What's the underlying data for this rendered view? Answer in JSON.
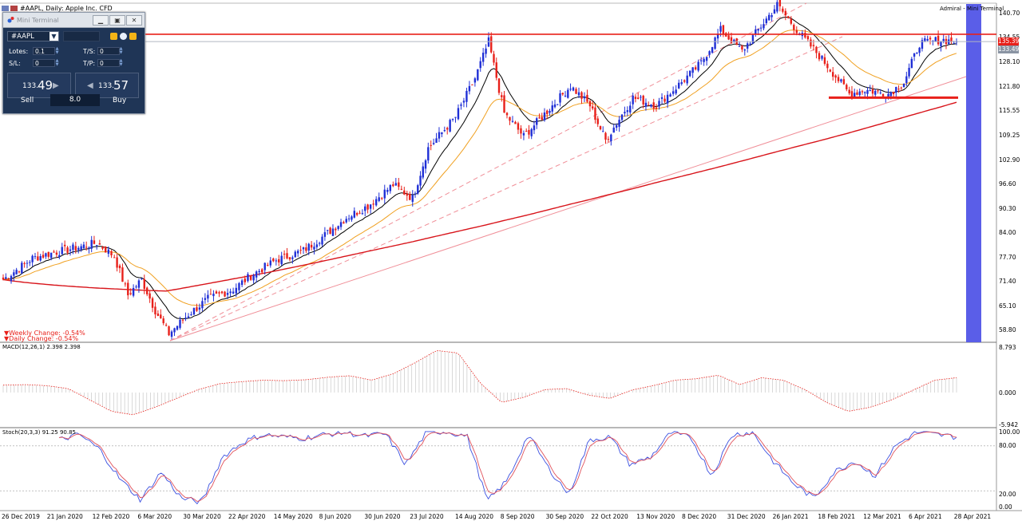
{
  "window": {
    "title": "#AAPL, Daily: Apple Inc. CFD",
    "top_right_label": "Admiral - Mini Terminal"
  },
  "price_axis": {
    "labels": [
      "140.70",
      "134.55",
      "128.10",
      "121.80",
      "115.55",
      "109.25",
      "102.90",
      "96.60",
      "90.30",
      "84.00",
      "77.70",
      "71.40",
      "65.10",
      "58.80"
    ],
    "tags": [
      {
        "value": "135.39",
        "color": "#e8201a"
      },
      {
        "value": "133.49",
        "color": "#8a94a3"
      }
    ]
  },
  "macd_axis": {
    "labels": [
      "8.793",
      "0.000",
      "-5.942"
    ]
  },
  "stoch_axis": {
    "labels": [
      "100.00",
      "80.00",
      "20.00",
      "0.00"
    ]
  },
  "time_axis": {
    "labels": [
      "26 Dec 2019",
      "21 Jan 2020",
      "12 Feb 2020",
      "6 Mar 2020",
      "30 Mar 2020",
      "22 Apr 2020",
      "14 May 2020",
      "8 Jun 2020",
      "30 Jun 2020",
      "23 Jul 2020",
      "14 Aug 2020",
      "8 Sep 2020",
      "30 Sep 2020",
      "22 Oct 2020",
      "13 Nov 2020",
      "8 Dec 2020",
      "31 Dec 2020",
      "26 Jan 2021",
      "18 Feb 2021",
      "12 Mar 2021",
      "6 Apr 2021",
      "28 Apr 2021"
    ]
  },
  "changes": {
    "weekly": "Weekly Change: -0.54%",
    "daily": "Daily Change: -0.54%",
    "color": "#e8201a"
  },
  "indicators": {
    "macd_label": "MACD(12,26,1) 2.398 2.398",
    "stoch_label": "Stoch(20,3,3) 91.25 90.85"
  },
  "mini_terminal": {
    "title": "Mini Terminal",
    "symbol": "#AAPL",
    "lots_label": "Lotes:",
    "lots_value": "0.1",
    "sl_label": "S/L:",
    "sl_value": "0",
    "ts_label": "T/S:",
    "ts_value": "0",
    "tp_label": "T/P:",
    "tp_value": "0",
    "sell_price_small": "133.",
    "sell_price_big": "49",
    "buy_price_small": "133.",
    "buy_price_big": "57",
    "sell_label": "Sell",
    "buy_label": "Buy",
    "spread": "8.0"
  },
  "colors": {
    "bull_candle": "#1f2fd6",
    "bear_candle": "#e8201a",
    "ema_fast": "#000000",
    "ema_slow": "#f0a020",
    "ma_long": "#d8141a",
    "resistance_line": "#e8201a",
    "support_line": "#e8201a",
    "highlight_band": "#5a5ee8"
  },
  "chart_data": {
    "type": "candlestick",
    "symbol": "#AAPL",
    "timeframe": "Daily",
    "ylim": [
      56,
      143
    ],
    "resistance_level": 135.39,
    "current_price": 133.49,
    "support_level": 119.0,
    "closes_weekly": [
      {
        "x": "2019-12-26",
        "y": 72.0
      },
      {
        "x": "2020-01-10",
        "y": 77.5
      },
      {
        "x": "2020-01-21",
        "y": 79.0
      },
      {
        "x": "2020-02-04",
        "y": 80.5
      },
      {
        "x": "2020-02-12",
        "y": 81.5
      },
      {
        "x": "2020-02-21",
        "y": 78.0
      },
      {
        "x": "2020-02-28",
        "y": 68.0
      },
      {
        "x": "2020-03-06",
        "y": 72.0
      },
      {
        "x": "2020-03-13",
        "y": 64.0
      },
      {
        "x": "2020-03-20",
        "y": 58.0
      },
      {
        "x": "2020-03-30",
        "y": 63.0
      },
      {
        "x": "2020-04-09",
        "y": 67.0
      },
      {
        "x": "2020-04-22",
        "y": 69.5
      },
      {
        "x": "2020-05-01",
        "y": 73.0
      },
      {
        "x": "2020-05-14",
        "y": 77.0
      },
      {
        "x": "2020-05-28",
        "y": 79.5
      },
      {
        "x": "2020-06-08",
        "y": 83.5
      },
      {
        "x": "2020-06-19",
        "y": 88.0
      },
      {
        "x": "2020-06-30",
        "y": 91.0
      },
      {
        "x": "2020-07-13",
        "y": 96.5
      },
      {
        "x": "2020-07-23",
        "y": 93.0
      },
      {
        "x": "2020-07-31",
        "y": 106.0
      },
      {
        "x": "2020-08-14",
        "y": 114.0
      },
      {
        "x": "2020-08-24",
        "y": 124.0
      },
      {
        "x": "2020-08-31",
        "y": 133.5
      },
      {
        "x": "2020-09-08",
        "y": 115.0
      },
      {
        "x": "2020-09-18",
        "y": 109.0
      },
      {
        "x": "2020-09-30",
        "y": 115.5
      },
      {
        "x": "2020-10-12",
        "y": 122.0
      },
      {
        "x": "2020-10-22",
        "y": 117.0
      },
      {
        "x": "2020-10-30",
        "y": 108.0
      },
      {
        "x": "2020-11-13",
        "y": 119.0
      },
      {
        "x": "2020-11-25",
        "y": 117.0
      },
      {
        "x": "2020-12-08",
        "y": 123.0
      },
      {
        "x": "2020-12-18",
        "y": 128.0
      },
      {
        "x": "2020-12-28",
        "y": 136.5
      },
      {
        "x": "2021-01-08",
        "y": 131.0
      },
      {
        "x": "2021-01-26",
        "y": 143.0
      },
      {
        "x": "2021-02-05",
        "y": 136.5
      },
      {
        "x": "2021-02-18",
        "y": 129.0
      },
      {
        "x": "2021-03-04",
        "y": 120.0
      },
      {
        "x": "2021-03-12",
        "y": 121.0
      },
      {
        "x": "2021-03-24",
        "y": 120.0
      },
      {
        "x": "2021-04-01",
        "y": 123.0
      },
      {
        "x": "2021-04-09",
        "y": 133.0
      },
      {
        "x": "2021-04-20",
        "y": 134.0
      },
      {
        "x": "2021-04-28",
        "y": 133.5
      }
    ],
    "macd_histogram": [
      1.5,
      1.6,
      1.4,
      0.8,
      -1.5,
      -3.8,
      -4.5,
      -3.0,
      -1.2,
      0.6,
      1.8,
      2.2,
      2.5,
      2.4,
      2.6,
      3.1,
      3.4,
      2.5,
      3.8,
      6.0,
      8.5,
      8.0,
      2.0,
      -2.0,
      -1.0,
      0.6,
      0.8,
      -0.5,
      -1.2,
      0.5,
      1.4,
      2.5,
      2.8,
      3.5,
      1.6,
      3.0,
      2.5,
      0.6,
      -2.0,
      -3.8,
      -3.0,
      -1.5,
      0.5,
      2.5,
      3.0
    ],
    "stoch_main": [
      88,
      95,
      75,
      35,
      8,
      45,
      10,
      5,
      65,
      85,
      95,
      92,
      90,
      95,
      98,
      93,
      96,
      55,
      98,
      99,
      93,
      6,
      35,
      95,
      50,
      15,
      88,
      92,
      55,
      65,
      98,
      90,
      40,
      95,
      98,
      60,
      30,
      10,
      45,
      60,
      40,
      80,
      98,
      95,
      92
    ]
  }
}
